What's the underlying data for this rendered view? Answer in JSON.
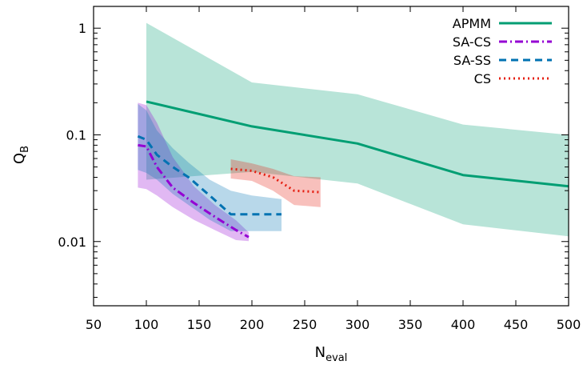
{
  "chart_data": {
    "type": "line",
    "x_axis": {
      "label_main": "N",
      "label_sub": "eval",
      "range": [
        50,
        500
      ],
      "ticks": [
        50,
        100,
        150,
        200,
        250,
        300,
        350,
        400,
        450,
        500
      ],
      "tick_labels": [
        "50",
        "100",
        "150",
        "200",
        "250",
        "300",
        "350",
        "400",
        "450",
        "500"
      ]
    },
    "y_axis": {
      "label_main": "Q",
      "label_sub": "B",
      "scale": "log",
      "range": [
        0.0025,
        1.6
      ],
      "ticks": [
        0.01,
        0.1,
        1
      ],
      "tick_labels": [
        "0.01",
        "0.1",
        "1"
      ]
    },
    "legend_position": "top-right",
    "grid": false,
    "series": [
      {
        "name": "APMM",
        "color": "#009e73",
        "dash": "solid",
        "x": [
          100,
          200,
          300,
          400,
          500
        ],
        "y": [
          0.205,
          0.12,
          0.083,
          0.042,
          0.033
        ],
        "band_x": [
          100,
          200,
          300,
          400,
          500
        ],
        "band_upper": [
          1.12,
          0.31,
          0.24,
          0.125,
          0.1
        ],
        "band_lower": [
          0.038,
          0.045,
          0.035,
          0.0145,
          0.0112
        ]
      },
      {
        "name": "SA-CS",
        "color": "#9400d3",
        "dash": "dashdot",
        "x": [
          92,
          100,
          110,
          125,
          145,
          165,
          185,
          197
        ],
        "y": [
          0.08,
          0.078,
          0.05,
          0.032,
          0.023,
          0.017,
          0.0128,
          0.011
        ],
        "band_x": [
          92,
          100,
          110,
          125,
          145,
          165,
          185,
          197
        ],
        "band_upper": [
          0.2,
          0.19,
          0.13,
          0.062,
          0.033,
          0.022,
          0.0158,
          0.0122
        ],
        "band_lower": [
          0.032,
          0.031,
          0.027,
          0.021,
          0.016,
          0.0128,
          0.0103,
          0.0101
        ]
      },
      {
        "name": "SA-SS",
        "color": "#0072b2",
        "dash": "dash",
        "x": [
          92,
          100,
          110,
          125,
          140,
          160,
          180,
          200,
          228
        ],
        "y": [
          0.097,
          0.09,
          0.065,
          0.05,
          0.04,
          0.027,
          0.018,
          0.018,
          0.018
        ],
        "band_x": [
          92,
          100,
          110,
          125,
          140,
          160,
          180,
          200,
          228
        ],
        "band_upper": [
          0.195,
          0.17,
          0.11,
          0.075,
          0.055,
          0.038,
          0.03,
          0.027,
          0.025
        ],
        "band_lower": [
          0.047,
          0.044,
          0.038,
          0.028,
          0.022,
          0.016,
          0.0125,
          0.0125,
          0.0125
        ]
      },
      {
        "name": "CS",
        "color": "#e51e10",
        "dash": "dot",
        "x": [
          180,
          200,
          220,
          240,
          265
        ],
        "y": [
          0.048,
          0.046,
          0.04,
          0.03,
          0.029
        ],
        "band_x": [
          180,
          200,
          220,
          240,
          265
        ],
        "band_upper": [
          0.059,
          0.054,
          0.048,
          0.041,
          0.04
        ],
        "band_lower": [
          0.039,
          0.037,
          0.03,
          0.022,
          0.021
        ]
      }
    ]
  }
}
